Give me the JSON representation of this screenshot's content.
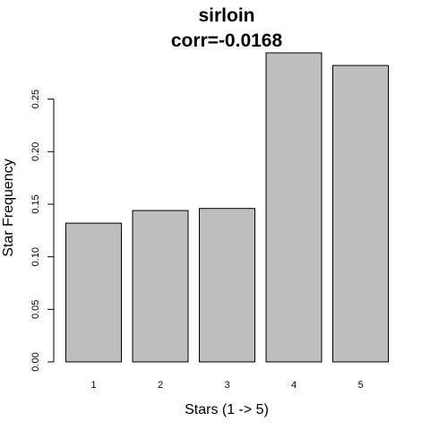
{
  "chart_data": {
    "type": "bar",
    "title": "sirloin",
    "subtitle": "corr=-0.0168",
    "xlabel": "Stars (1 -> 5)",
    "ylabel": "Star Frequency",
    "categories": [
      "1",
      "2",
      "3",
      "4",
      "5"
    ],
    "values": [
      0.132,
      0.144,
      0.146,
      0.294,
      0.282
    ],
    "yticks": [
      "0.00",
      "0.05",
      "0.10",
      "0.15",
      "0.20",
      "0.25"
    ],
    "ytick_values": [
      0,
      0.05,
      0.1,
      0.15,
      0.2,
      0.25
    ],
    "ylim": [
      0,
      0.294
    ],
    "grid": false,
    "bar_color": "#bebebe"
  }
}
